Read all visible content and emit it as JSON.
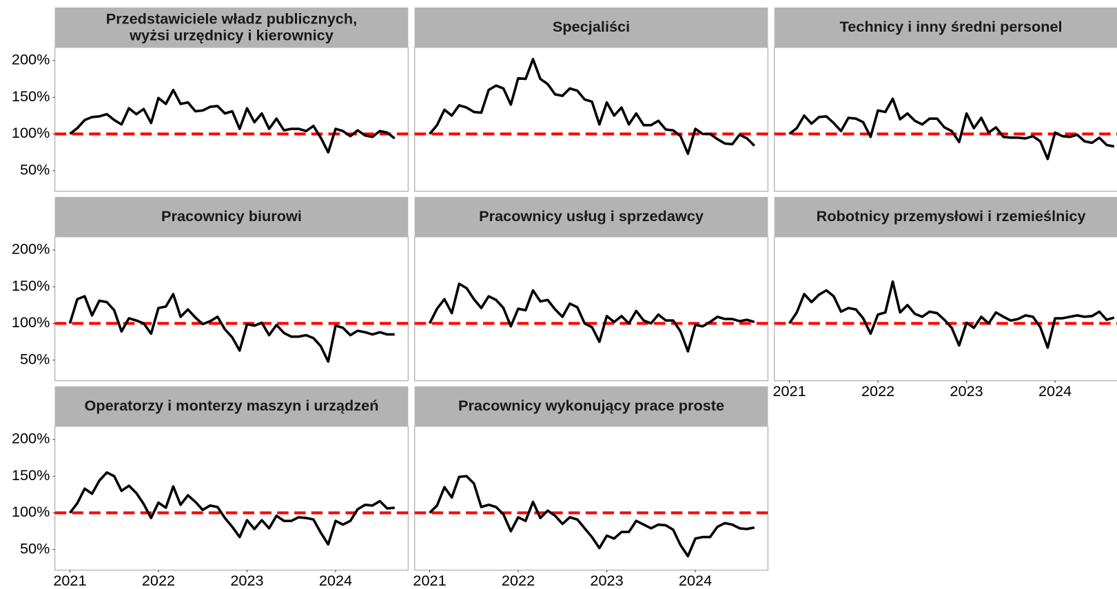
{
  "chart_data": {
    "type": "line",
    "x": [
      2021,
      2021.083,
      2021.167,
      2021.25,
      2021.333,
      2021.417,
      2021.5,
      2021.583,
      2021.667,
      2021.75,
      2021.833,
      2021.917,
      2022,
      2022.083,
      2022.167,
      2022.25,
      2022.333,
      2022.417,
      2022.5,
      2022.583,
      2022.667,
      2022.75,
      2022.833,
      2022.917,
      2023,
      2023.083,
      2023.167,
      2023.25,
      2023.333,
      2023.417,
      2023.5,
      2023.583,
      2023.667,
      2023.75,
      2023.833,
      2023.917,
      2024,
      2024.083,
      2024.167,
      2024.25,
      2024.333,
      2024.417,
      2024.5,
      2024.583,
      2024.667
    ],
    "xlim": [
      2020.83,
      2024.82
    ],
    "xticks": [
      2021,
      2022,
      2023,
      2024
    ],
    "ylim": [
      22,
      218
    ],
    "yticks": [
      {
        "value": 50,
        "label": "50%"
      },
      {
        "value": 100,
        "label": "100%"
      },
      {
        "value": 150,
        "label": "150%"
      },
      {
        "value": 200,
        "label": "200%"
      }
    ],
    "grid": false,
    "hline": {
      "value": 100,
      "color": "#ff0000"
    },
    "series": [
      {
        "name": "Przedstawiciele władz publicznych,\nwyżsi urzędnicy i kierownicy",
        "color": "#000000",
        "values": [
          100,
          108,
          119,
          123,
          124,
          127,
          119,
          113,
          135,
          127,
          134,
          115,
          149,
          141,
          160,
          141,
          143,
          131,
          132,
          137,
          138,
          128,
          131,
          107,
          135,
          116,
          128,
          107,
          121,
          105,
          107,
          107,
          104,
          111,
          95,
          75,
          107,
          104,
          97,
          105,
          98,
          96,
          104,
          102,
          94
        ]
      },
      {
        "name": "Specjaliści",
        "color": "#000000",
        "values": [
          100,
          112,
          133,
          125,
          139,
          136,
          130,
          129,
          160,
          166,
          162,
          140,
          176,
          175,
          202,
          175,
          168,
          154,
          152,
          162,
          159,
          147,
          144,
          113,
          143,
          125,
          136,
          113,
          128,
          112,
          112,
          118,
          106,
          105,
          97,
          73,
          107,
          100,
          100,
          93,
          87,
          86,
          99,
          94,
          84
        ]
      },
      {
        "name": "Technicy i inny średni personel",
        "color": "#000000",
        "values": [
          100,
          108,
          125,
          114,
          123,
          124,
          115,
          104,
          122,
          121,
          116,
          96,
          132,
          130,
          148,
          120,
          128,
          118,
          113,
          121,
          121,
          109,
          104,
          89,
          128,
          108,
          122,
          102,
          109,
          96,
          95,
          95,
          94,
          97,
          90,
          66,
          102,
          97,
          96,
          99,
          90,
          88,
          95,
          85,
          83
        ]
      },
      {
        "name": "Pracownicy biurowi",
        "color": "#000000",
        "values": [
          100,
          133,
          137,
          111,
          131,
          129,
          118,
          89,
          107,
          104,
          100,
          86,
          121,
          123,
          140,
          109,
          119,
          108,
          99,
          103,
          109,
          92,
          81,
          63,
          99,
          97,
          101,
          84,
          98,
          87,
          82,
          82,
          84,
          80,
          69,
          48,
          97,
          94,
          84,
          90,
          88,
          85,
          88,
          85,
          85
        ]
      },
      {
        "name": "Pracownicy usług i sprzedawcy",
        "color": "#000000",
        "values": [
          100,
          120,
          133,
          114,
          154,
          148,
          133,
          121,
          137,
          132,
          121,
          96,
          120,
          118,
          145,
          130,
          132,
          119,
          109,
          127,
          122,
          100,
          95,
          75,
          110,
          102,
          110,
          100,
          117,
          104,
          100,
          112,
          104,
          104,
          89,
          62,
          98,
          96,
          102,
          109,
          106,
          106,
          103,
          105,
          102
        ]
      },
      {
        "name": "Robotnicy przemysłowi i rzemieślnicy",
        "color": "#000000",
        "values": [
          100,
          115,
          140,
          129,
          139,
          145,
          137,
          116,
          121,
          119,
          107,
          86,
          112,
          115,
          157,
          115,
          125,
          113,
          109,
          116,
          114,
          105,
          94,
          70,
          101,
          94,
          109,
          100,
          115,
          109,
          104,
          106,
          111,
          109,
          95,
          67,
          107,
          107,
          109,
          111,
          109,
          110,
          116,
          105,
          108
        ]
      },
      {
        "name": "Operatorzy i monterzy maszyn i urządzeń",
        "color": "#000000",
        "values": [
          100,
          113,
          133,
          126,
          144,
          155,
          150,
          130,
          137,
          127,
          112,
          93,
          114,
          107,
          136,
          111,
          124,
          115,
          104,
          110,
          108,
          93,
          81,
          67,
          90,
          78,
          90,
          79,
          96,
          89,
          89,
          94,
          93,
          91,
          73,
          57,
          89,
          84,
          89,
          105,
          111,
          110,
          116,
          106,
          107
        ]
      },
      {
        "name": "Pracownicy wykonujący prace proste",
        "color": "#000000",
        "values": [
          100,
          110,
          135,
          121,
          149,
          150,
          140,
          108,
          111,
          108,
          98,
          75,
          94,
          89,
          115,
          93,
          103,
          96,
          85,
          94,
          91,
          79,
          67,
          52,
          69,
          65,
          74,
          74,
          89,
          84,
          79,
          84,
          83,
          77,
          56,
          41,
          65,
          67,
          67,
          81,
          86,
          84,
          79,
          78,
          80
        ]
      }
    ]
  }
}
